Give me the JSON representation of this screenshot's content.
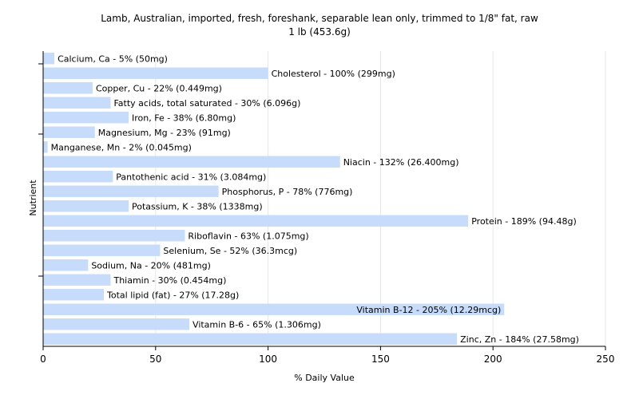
{
  "chart_data": {
    "type": "bar",
    "orientation": "horizontal",
    "title": "Lamb, Australian, imported, fresh, foreshank, separable lean only, trimmed to 1/8\" fat, raw",
    "subtitle": "1 lb (453.6g)",
    "xlabel": "% Daily Value",
    "ylabel": "Nutrient",
    "xlim": [
      0,
      250
    ],
    "xticks": [
      0,
      50,
      100,
      150,
      200,
      250
    ],
    "grid": true,
    "bar_color": "#c6dcfa",
    "categories": [
      "Calcium, Ca",
      "Cholesterol",
      "Copper, Cu",
      "Fatty acids, total saturated",
      "Iron, Fe",
      "Magnesium, Mg",
      "Manganese, Mn",
      "Niacin",
      "Pantothenic acid",
      "Phosphorus, P",
      "Potassium, K",
      "Protein",
      "Riboflavin",
      "Selenium, Se",
      "Sodium, Na",
      "Thiamin",
      "Total lipid (fat)",
      "Vitamin B-12",
      "Vitamin B-6",
      "Zinc, Zn"
    ],
    "values": [
      5,
      100,
      22,
      30,
      38,
      23,
      2,
      132,
      31,
      78,
      38,
      189,
      63,
      52,
      20,
      30,
      27,
      205,
      65,
      184
    ],
    "labels": [
      "Calcium, Ca - 5% (50mg)",
      "Cholesterol - 100% (299mg)",
      "Copper, Cu - 22% (0.449mg)",
      "Fatty acids, total saturated - 30% (6.096g)",
      "Iron, Fe - 38% (6.80mg)",
      "Magnesium, Mg - 23% (91mg)",
      "Manganese, Mn - 2% (0.045mg)",
      "Niacin - 132% (26.400mg)",
      "Pantothenic acid - 31% (3.084mg)",
      "Phosphorus, P - 78% (776mg)",
      "Potassium, K - 38% (1338mg)",
      "Protein - 189% (94.48g)",
      "Riboflavin - 63% (1.075mg)",
      "Selenium, Se - 52% (36.3mcg)",
      "Sodium, Na - 20% (481mg)",
      "Thiamin - 30% (0.454mg)",
      "Total lipid (fat) - 27% (17.28g)",
      "Vitamin B-12 - 205% (12.29mcg)",
      "Vitamin B-6 - 65% (1.306mg)",
      "Zinc, Zn - 184% (27.58mg)"
    ]
  }
}
